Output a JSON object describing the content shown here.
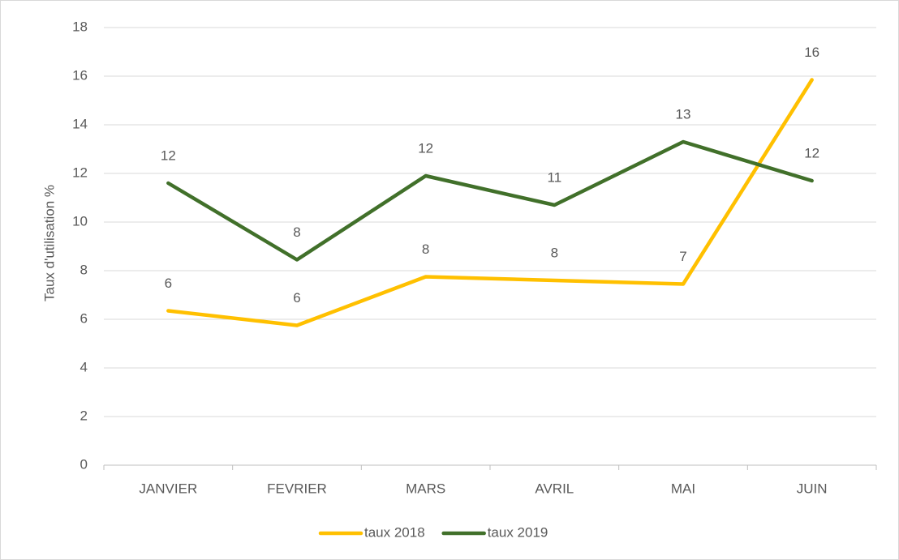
{
  "chart_data": {
    "type": "line",
    "y_label": "Taux d'utilisation  %",
    "categories": [
      "JANVIER",
      "FEVRIER",
      "MARS",
      "AVRIL",
      "MAI",
      "JUIN"
    ],
    "series": [
      {
        "name": "taux 2018",
        "color": "#ffc000",
        "values": [
          6.35,
          5.75,
          7.75,
          7.6,
          7.45,
          15.85
        ],
        "value_labels": [
          "6",
          "6",
          "8",
          "8",
          "7",
          "16"
        ]
      },
      {
        "name": "taux 2019",
        "color": "#41702a",
        "values": [
          11.6,
          8.45,
          11.9,
          10.7,
          13.3,
          11.7
        ],
        "value_labels": [
          "12",
          "8",
          "12",
          "11",
          "13",
          "12"
        ]
      }
    ],
    "ylim": [
      0,
      18
    ],
    "yticks": [
      0,
      2,
      4,
      6,
      8,
      10,
      12,
      14,
      16,
      18
    ],
    "grid": true,
    "legend": "bottom"
  }
}
